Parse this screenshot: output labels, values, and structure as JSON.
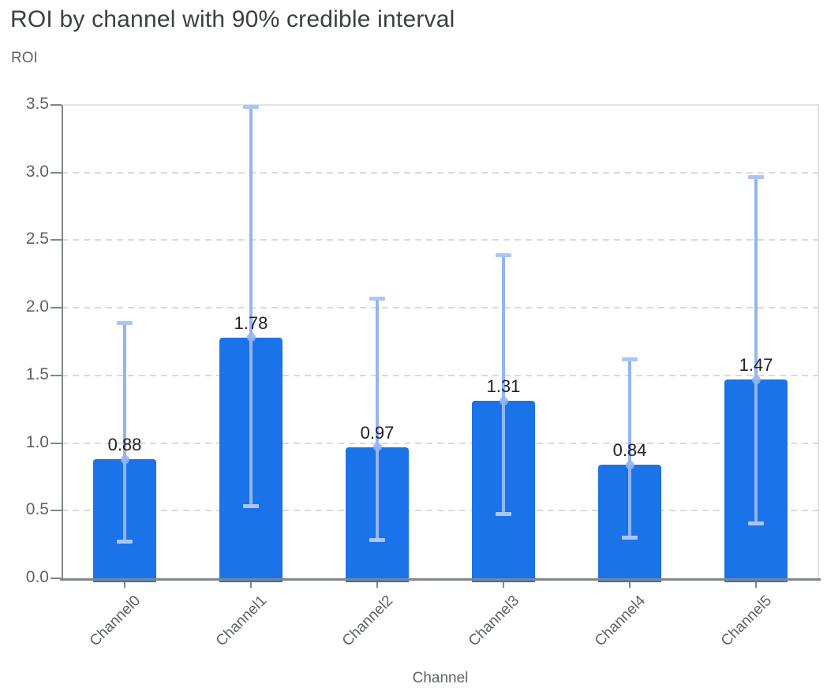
{
  "chart_data": {
    "type": "bar",
    "title": "ROI by channel with 90% credible interval",
    "ylabel": "ROI",
    "xlabel": "Channel",
    "categories": [
      "Channel0",
      "Channel1",
      "Channel2",
      "Channel3",
      "Channel4",
      "Channel5"
    ],
    "series": [
      {
        "name": "ROI",
        "values": [
          0.88,
          1.78,
          0.97,
          1.31,
          0.84,
          1.47
        ],
        "error_low": [
          0.27,
          0.53,
          0.28,
          0.47,
          0.3,
          0.4
        ],
        "error_high": [
          1.89,
          3.49,
          2.07,
          2.39,
          1.62,
          2.97
        ]
      }
    ],
    "value_labels": [
      "0.88",
      "1.78",
      "0.97",
      "1.31",
      "0.84",
      "1.47"
    ],
    "error_bar_meaning": "90% credible interval",
    "ylim": [
      0,
      3.5
    ],
    "ytick_labels": [
      "0.0",
      "0.5",
      "1.0",
      "1.5",
      "2.0",
      "2.5",
      "3.0",
      "3.5"
    ],
    "grid": "horizontal dashed",
    "legend": "none",
    "colors": {
      "bar": "#1a73e8",
      "error_line": "#94b4f2",
      "error_cap": "#aac6f7",
      "marker": "#94b4f2",
      "gridline": "#d9dadc",
      "plot_border": "#e2e3e4",
      "axis_line": "#80868b",
      "tick_label": "#5f6368",
      "value_label": "#202124",
      "title": "#3c4043"
    }
  }
}
